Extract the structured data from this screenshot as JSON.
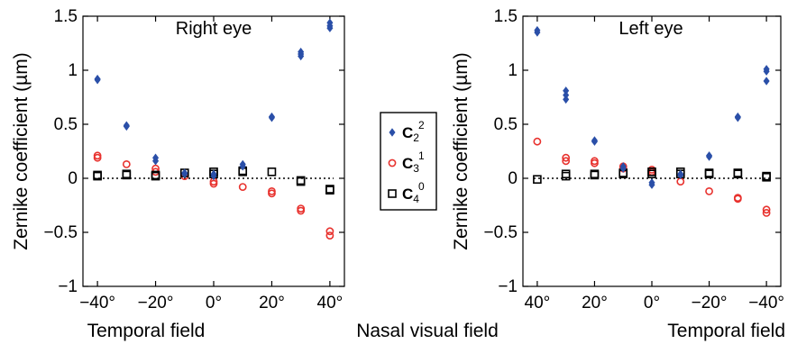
{
  "chart_data": [
    {
      "type": "scatter",
      "title": "Right eye",
      "ylabel": "Zernike coefficient (µm)",
      "xlabel": "",
      "xlim": [
        -45,
        45
      ],
      "ylim": [
        -1,
        1.5
      ],
      "x_ticks": [
        -40,
        -20,
        0,
        20,
        40
      ],
      "x_tick_labels": [
        "−40°",
        "−20°",
        "0°",
        "20°",
        "40°"
      ],
      "y_ticks": [
        -1,
        -0.5,
        0,
        0.5,
        1,
        1.5
      ],
      "y_tick_labels": [
        "−1",
        "−0.5",
        "0",
        "0.5",
        "1",
        "1.5"
      ],
      "field_labels": {
        "left": "Temporal field"
      },
      "zero_line": true,
      "series": [
        {
          "name": "C2^2",
          "marker": "diamond",
          "color": "#2a4fa8",
          "points": [
            [
              -40,
              0.92
            ],
            [
              -40,
              0.91
            ],
            [
              -30,
              0.49
            ],
            [
              -30,
              0.48
            ],
            [
              -20,
              0.19
            ],
            [
              -20,
              0.16
            ],
            [
              -10,
              0.05
            ],
            [
              -10,
              0.04
            ],
            [
              0,
              0.04
            ],
            [
              0,
              0.02
            ],
            [
              10,
              0.13
            ],
            [
              10,
              0.11
            ],
            [
              20,
              0.57
            ],
            [
              20,
              0.56
            ],
            [
              30,
              1.17
            ],
            [
              30,
              1.15
            ],
            [
              30,
              1.13
            ],
            [
              40,
              1.44
            ],
            [
              40,
              1.41
            ],
            [
              40,
              1.39
            ]
          ]
        },
        {
          "name": "C3^1",
          "marker": "circle",
          "color": "#e8322e",
          "points": [
            [
              -40,
              0.21
            ],
            [
              -40,
              0.19
            ],
            [
              -30,
              0.13
            ],
            [
              -20,
              0.09
            ],
            [
              -20,
              0.06
            ],
            [
              -10,
              0.02
            ],
            [
              0,
              -0.03
            ],
            [
              0,
              -0.05
            ],
            [
              10,
              -0.08
            ],
            [
              20,
              -0.12
            ],
            [
              20,
              -0.14
            ],
            [
              30,
              -0.28
            ],
            [
              30,
              -0.3
            ],
            [
              40,
              -0.49
            ],
            [
              40,
              -0.53
            ]
          ]
        },
        {
          "name": "C4^0",
          "marker": "square",
          "color": "#000000",
          "points": [
            [
              -40,
              0.03
            ],
            [
              -40,
              0.02
            ],
            [
              -30,
              0.04
            ],
            [
              -30,
              0.03
            ],
            [
              -20,
              0.03
            ],
            [
              -20,
              0.02
            ],
            [
              -10,
              0.05
            ],
            [
              0,
              0.06
            ],
            [
              0,
              0.04
            ],
            [
              10,
              0.07
            ],
            [
              10,
              0.06
            ],
            [
              20,
              0.06
            ],
            [
              30,
              -0.02
            ],
            [
              30,
              -0.03
            ],
            [
              40,
              -0.1
            ],
            [
              40,
              -0.11
            ]
          ]
        }
      ]
    },
    {
      "type": "scatter",
      "title": "Left eye",
      "ylabel": "Zernike coefficient (µm)",
      "xlabel": "",
      "xlim": [
        -45,
        45
      ],
      "ylim": [
        -1,
        1.5
      ],
      "x_reversed": true,
      "x_ticks": [
        40,
        20,
        0,
        -20,
        -40
      ],
      "x_tick_labels": [
        "40°",
        "20°",
        "0°",
        "−20°",
        "−40°"
      ],
      "y_ticks": [
        -1,
        -0.5,
        0,
        0.5,
        1,
        1.5
      ],
      "y_tick_labels": [
        "−1",
        "−0.5",
        "0",
        "0.5",
        "1",
        "1.5"
      ],
      "field_labels": {
        "right": "Temporal field"
      },
      "zero_line": true,
      "series": [
        {
          "name": "C2^2",
          "marker": "diamond",
          "color": "#2a4fa8",
          "points": [
            [
              40,
              1.37
            ],
            [
              40,
              1.35
            ],
            [
              30,
              0.81
            ],
            [
              30,
              0.77
            ],
            [
              30,
              0.73
            ],
            [
              20,
              0.35
            ],
            [
              20,
              0.34
            ],
            [
              10,
              0.11
            ],
            [
              10,
              0.09
            ],
            [
              0,
              -0.04
            ],
            [
              0,
              -0.06
            ],
            [
              -10,
              0.04
            ],
            [
              -10,
              0.03
            ],
            [
              -20,
              0.21
            ],
            [
              -20,
              0.2
            ],
            [
              -30,
              0.57
            ],
            [
              -30,
              0.56
            ],
            [
              -40,
              1.01
            ],
            [
              -40,
              0.99
            ],
            [
              -40,
              0.9
            ]
          ]
        },
        {
          "name": "C3^1",
          "marker": "circle",
          "color": "#e8322e",
          "points": [
            [
              40,
              0.34
            ],
            [
              30,
              0.19
            ],
            [
              30,
              0.16
            ],
            [
              20,
              0.16
            ],
            [
              20,
              0.14
            ],
            [
              10,
              0.11
            ],
            [
              10,
              0.09
            ],
            [
              0,
              0.08
            ],
            [
              0,
              0.06
            ],
            [
              -10,
              -0.03
            ],
            [
              -20,
              -0.12
            ],
            [
              -30,
              -0.18
            ],
            [
              -30,
              -0.19
            ],
            [
              -40,
              -0.29
            ],
            [
              -40,
              -0.32
            ]
          ]
        },
        {
          "name": "C4^0",
          "marker": "square",
          "color": "#000000",
          "points": [
            [
              40,
              -0.01
            ],
            [
              30,
              0.04
            ],
            [
              30,
              0.02
            ],
            [
              20,
              0.04
            ],
            [
              20,
              0.03
            ],
            [
              10,
              0.05
            ],
            [
              10,
              0.04
            ],
            [
              0,
              0.06
            ],
            [
              0,
              0.04
            ],
            [
              -10,
              0.06
            ],
            [
              -10,
              0.04
            ],
            [
              -20,
              0.05
            ],
            [
              -20,
              0.04
            ],
            [
              -30,
              0.05
            ],
            [
              -30,
              0.04
            ],
            [
              -40,
              0.02
            ],
            [
              -40,
              0.01
            ]
          ]
        }
      ]
    }
  ],
  "legend": {
    "placement": "center",
    "items": [
      {
        "base": "C",
        "sub": "2",
        "sup": "2",
        "marker": "diamond",
        "color": "#2a4fa8"
      },
      {
        "base": "C",
        "sub": "3",
        "sup": "1",
        "marker": "circle",
        "color": "#e8322e"
      },
      {
        "base": "C",
        "sub": "4",
        "sup": "0",
        "marker": "square",
        "color": "#000000"
      }
    ]
  },
  "center_label": "Nasal visual field"
}
